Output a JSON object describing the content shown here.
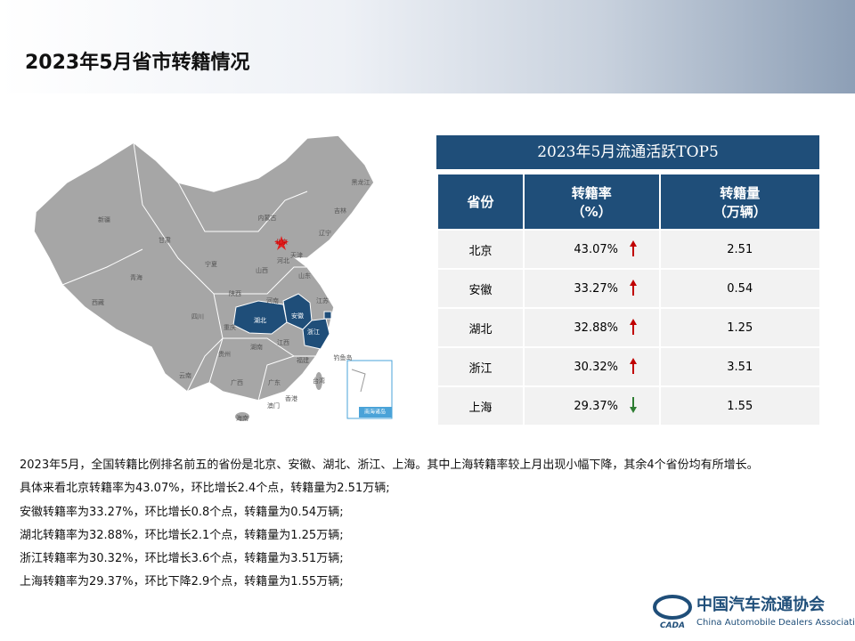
{
  "header": {
    "title": "2023年5月省市转籍情况"
  },
  "map": {
    "labels": [
      "新疆",
      "西藏",
      "青海",
      "甘肃",
      "内蒙古",
      "黑龙江",
      "吉林",
      "辽宁",
      "北京",
      "天津",
      "河北",
      "山西",
      "山东",
      "宁夏",
      "陕西",
      "河南",
      "江苏",
      "安徽",
      "湖北",
      "上海",
      "浙江",
      "四川",
      "重庆",
      "贵州",
      "湖南",
      "江西",
      "福建",
      "云南",
      "广西",
      "广东",
      "台湾",
      "香港",
      "澳门",
      "海南",
      "钓鱼岛",
      "南海诸岛"
    ]
  },
  "table": {
    "title": "2023年5月流通活跃TOP5",
    "columns": [
      "省份",
      "转籍率\n（%）",
      "转籍量\n（万辆）"
    ],
    "rows": [
      [
        "北京",
        "43.07%",
        "2.51"
      ],
      [
        "安徽",
        "33.27%",
        "0.54"
      ],
      [
        "湖北",
        "32.88%",
        "1.25"
      ],
      [
        "浙江",
        "30.32%",
        "3.51"
      ],
      [
        "上海",
        "29.37%",
        "1.55"
      ]
    ],
    "trend": [
      "up",
      "up",
      "up",
      "up",
      "down"
    ]
  },
  "text": {
    "lines": [
      "2023年5月，全国转籍比例排名前五的省份是北京、安徽、湖北、浙江、上海。其中上海转籍率较上月出现小幅下降，其余4个省份均有所增长。",
      "具体来看北京转籍率为43.07%，环比增长2.4个点，转籍量为2.51万辆;",
      "安徽转籍率为33.27%，环比增长0.8个点，转籍量为0.54万辆;",
      "湖北转籍率为32.88%，环比增长2.1个点，转籍量为1.25万辆;",
      "浙江转籍率为30.32%，环比增长3.6个点，转籍量为3.51万辆;",
      "上海转籍率为29.37%，环比下降2.9个点，转籍量为1.55万辆;"
    ]
  },
  "logo": {
    "name": "中国汽车流通协会",
    "english": "China Automobile Dealers Association",
    "mark": "CADA"
  }
}
